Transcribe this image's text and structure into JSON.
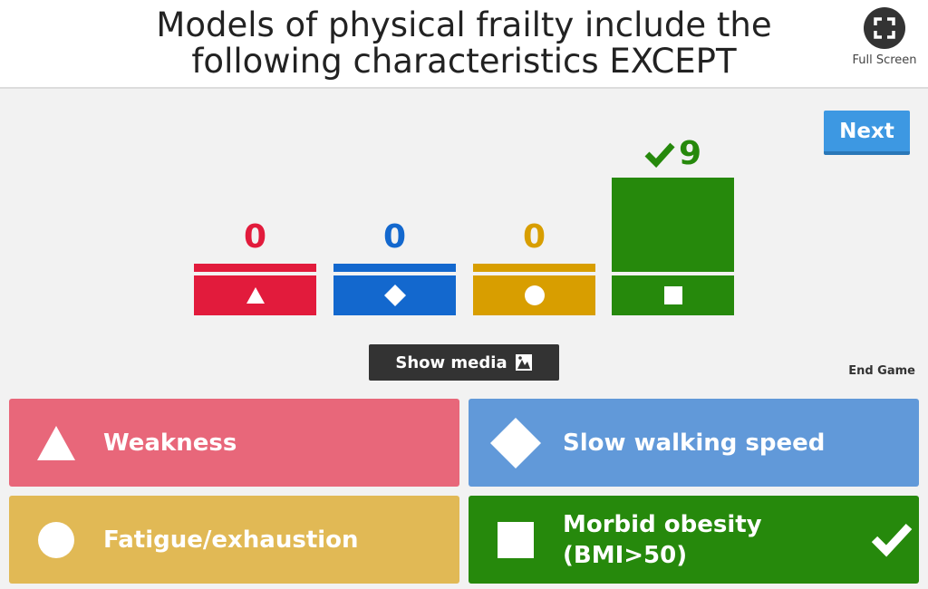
{
  "question": "Models of physical frailty include the following characteristics EXCEPT",
  "fullscreen_label": "Full Screen",
  "next_label": "Next",
  "show_media_label": "Show media",
  "end_game_label": "End Game",
  "results": [
    {
      "count": "0",
      "color": "#e21b3c",
      "shape": "triangle-icon"
    },
    {
      "count": "0",
      "color": "#1368ce",
      "shape": "diamond-icon"
    },
    {
      "count": "0",
      "color": "#d89e00",
      "shape": "circle-icon"
    },
    {
      "count": "9",
      "color": "#26890c",
      "shape": "square-icon",
      "correct": true
    }
  ],
  "answers": [
    {
      "label": "Weakness",
      "color": "#e8677a",
      "shape": "triangle-icon"
    },
    {
      "label": "Slow walking speed",
      "color": "#6199d9",
      "shape": "diamond-icon"
    },
    {
      "label": "Fatigue/exhaustion",
      "color": "#e1b955",
      "shape": "circle-icon"
    },
    {
      "label": "Morbid obesity (BMI>50)",
      "color": "#26890c",
      "shape": "square-icon",
      "correct": true
    }
  ]
}
